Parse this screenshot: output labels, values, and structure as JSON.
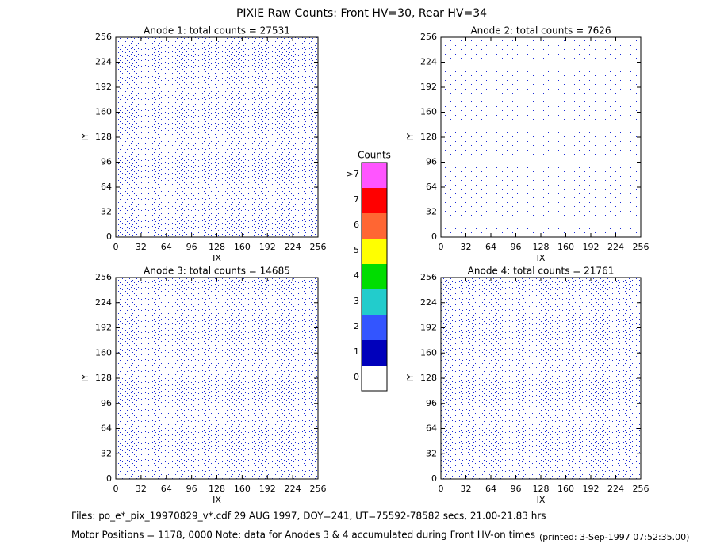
{
  "title": "PIXIE Raw Counts:  Front HV=30, Rear HV=34",
  "chart_data": [
    {
      "type": "heatmap",
      "title": "Anode 1: total counts = 27531",
      "xlabel": "IX",
      "ylabel": "IY",
      "xlim": [
        0,
        256
      ],
      "ylim": [
        0,
        256
      ],
      "xticks": [
        0,
        32,
        64,
        96,
        128,
        160,
        192,
        224,
        256
      ],
      "yticks": [
        0,
        32,
        64,
        96,
        128,
        160,
        192,
        224,
        256
      ]
    },
    {
      "type": "heatmap",
      "title": "Anode 2: total counts = 7626",
      "xlabel": "IX",
      "ylabel": "IY",
      "xlim": [
        0,
        256
      ],
      "ylim": [
        0,
        256
      ],
      "xticks": [
        0,
        32,
        64,
        96,
        128,
        160,
        192,
        224,
        256
      ],
      "yticks": [
        0,
        32,
        64,
        96,
        128,
        160,
        192,
        224,
        256
      ]
    },
    {
      "type": "heatmap",
      "title": "Anode 3: total counts = 14685",
      "xlabel": "IX",
      "ylabel": "IY",
      "xlim": [
        0,
        256
      ],
      "ylim": [
        0,
        256
      ],
      "xticks": [
        0,
        32,
        64,
        96,
        128,
        160,
        192,
        224,
        256
      ],
      "yticks": [
        0,
        32,
        64,
        96,
        128,
        160,
        192,
        224,
        256
      ]
    },
    {
      "type": "heatmap",
      "title": "Anode 4: total counts = 21761",
      "xlabel": "IX",
      "ylabel": "IY",
      "xlim": [
        0,
        256
      ],
      "ylim": [
        0,
        256
      ],
      "xticks": [
        0,
        32,
        64,
        96,
        128,
        160,
        192,
        224,
        256
      ],
      "yticks": [
        0,
        32,
        64,
        96,
        128,
        160,
        192,
        224,
        256
      ]
    }
  ],
  "colorbar": {
    "title": "Counts",
    "labels": [
      "0",
      "1",
      "2",
      "3",
      "4",
      "5",
      "6",
      "7",
      ">7"
    ],
    "colors": [
      "#ffffff",
      "#0000bb",
      "#3355ff",
      "#22cccc",
      "#00dd00",
      "#ffff00",
      "#ff6633",
      "#ff0000",
      "#ff55ff"
    ]
  },
  "footer": {
    "files": "Files: po_e*_pix_19970829_v*.cdf    29 AUG 1997, DOY=241, UT=75592-78582 secs, 21.00-21.83 hrs",
    "note": "Motor Positions = 1178, 0000   Note: data for Anodes 3 & 4 accumulated during Front HV-on times",
    "printed": "(printed:  3-Sep-1997 07:52:35.00)"
  }
}
